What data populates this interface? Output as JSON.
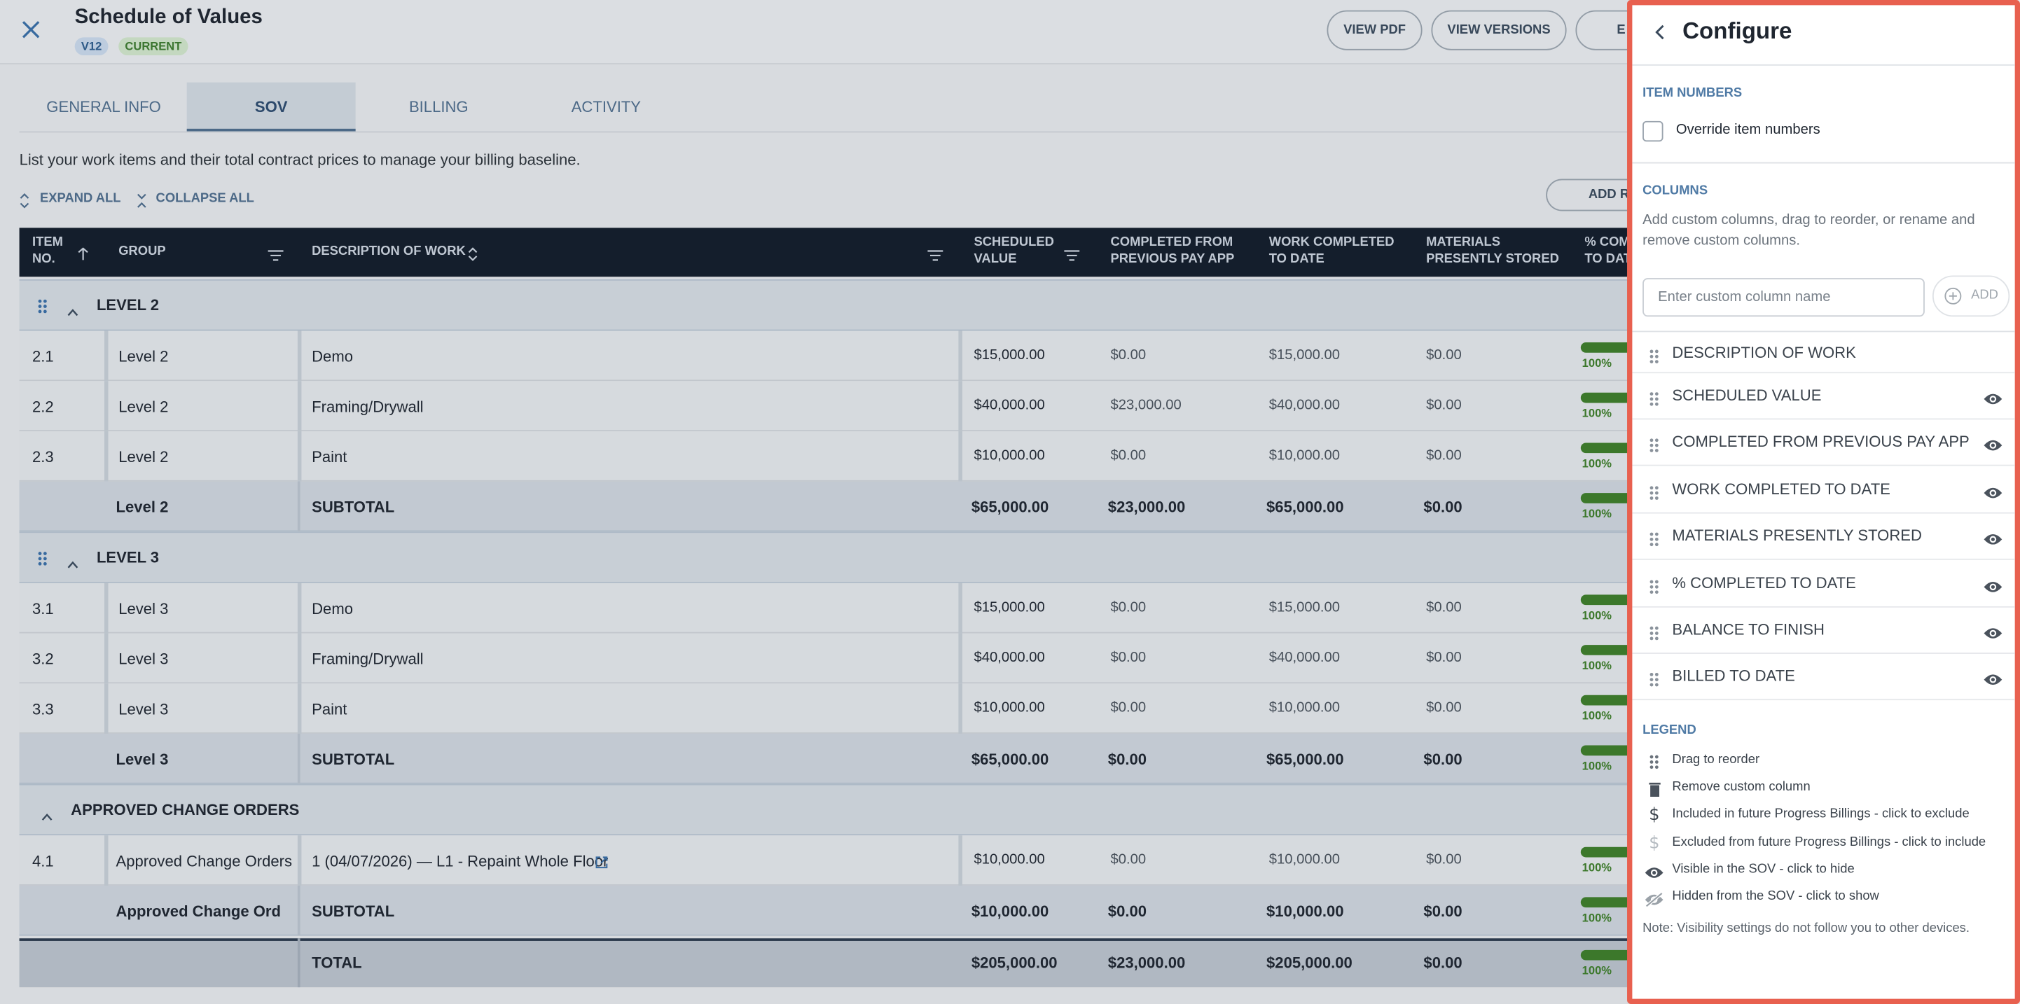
{
  "header": {
    "title": "Schedule of Values",
    "version": "V12",
    "status": "CURRENT",
    "buttons": [
      "VIEW PDF",
      "VIEW VERSIONS",
      "E"
    ]
  },
  "tabs": [
    "GENERAL INFO",
    "SOV",
    "BILLING",
    "ACTIVITY"
  ],
  "intro": "List your work items and their total contract prices to manage your billing baseline.",
  "toolbar": {
    "expand": "EXPAND ALL",
    "collapse": "COLLAPSE ALL",
    "add": "ADD R"
  },
  "table": {
    "columns": [
      [
        "ITEM",
        "NO."
      ],
      [
        "GROUP"
      ],
      [
        "DESCRIPTION OF WORK"
      ],
      [
        "SCHEDULED",
        "VALUE"
      ],
      [
        "COMPLETED FROM",
        "PREVIOUS PAY APP"
      ],
      [
        "WORK COMPLETED",
        "TO DATE"
      ],
      [
        "MATERIALS",
        "PRESENTLY STORED"
      ],
      [
        "% COM",
        "TO DAT"
      ]
    ],
    "groups": [
      {
        "title": "LEVEL 2",
        "rows": [
          [
            "2.1",
            "Level 2",
            "Demo",
            "$15,000.00",
            "$0.00",
            "$15,000.00",
            "$0.00",
            "100%"
          ],
          [
            "2.2",
            "Level 2",
            "Framing/Drywall",
            "$40,000.00",
            "$23,000.00",
            "$40,000.00",
            "$0.00",
            "100%"
          ],
          [
            "2.3",
            "Level 2",
            "Paint",
            "$10,000.00",
            "$0.00",
            "$10,000.00",
            "$0.00",
            "100%"
          ]
        ],
        "subtotal": [
          "Level 2",
          "SUBTOTAL",
          "$65,000.00",
          "$23,000.00",
          "$65,000.00",
          "$0.00",
          "100%"
        ]
      },
      {
        "title": "LEVEL 3",
        "rows": [
          [
            "3.1",
            "Level 3",
            "Demo",
            "$15,000.00",
            "$0.00",
            "$15,000.00",
            "$0.00",
            "100%"
          ],
          [
            "3.2",
            "Level 3",
            "Framing/Drywall",
            "$40,000.00",
            "$0.00",
            "$40,000.00",
            "$0.00",
            "100%"
          ],
          [
            "3.3",
            "Level 3",
            "Paint",
            "$10,000.00",
            "$0.00",
            "$10,000.00",
            "$0.00",
            "100%"
          ]
        ],
        "subtotal": [
          "Level 3",
          "SUBTOTAL",
          "$65,000.00",
          "$0.00",
          "$65,000.00",
          "$0.00",
          "100%"
        ]
      },
      {
        "title": "APPROVED CHANGE ORDERS",
        "rows": [
          [
            "4.1",
            "Approved Change Orders",
            "1 (04/07/2026) — L1 - Repaint Whole Floor",
            "$10,000.00",
            "$0.00",
            "$10,000.00",
            "$0.00",
            "100%"
          ]
        ],
        "subtotal": [
          "Approved Change Ord...",
          "SUBTOTAL",
          "$10,000.00",
          "$0.00",
          "$10,000.00",
          "$0.00",
          "100%"
        ]
      }
    ],
    "total": [
      "TOTAL",
      "$205,000.00",
      "$23,000.00",
      "$205,000.00",
      "$0.00",
      "100%"
    ]
  },
  "panel": {
    "title": "Configure",
    "item_numbers": "ITEM NUMBERS",
    "override": "Override item numbers",
    "columns_heading": "COLUMNS",
    "columns_help": [
      "Add custom columns, drag to reorder, or rename and",
      "remove custom columns."
    ],
    "input_placeholder": "Enter custom column name",
    "add": "ADD",
    "columns": [
      "DESCRIPTION OF WORK",
      "SCHEDULED VALUE",
      "COMPLETED FROM PREVIOUS PAY APP",
      "WORK COMPLETED TO DATE",
      "MATERIALS PRESENTLY STORED",
      "% COMPLETED TO DATE",
      "BALANCE TO FINISH",
      "BILLED TO DATE"
    ],
    "legend_heading": "LEGEND",
    "legend": [
      "Drag to reorder",
      "Remove custom column",
      "Included in future Progress Billings - click to exclude",
      "Excluded from future Progress Billings - click to include",
      "Visible in the SOV - click to hide",
      "Hidden from the SOV - click to show"
    ],
    "note": "Note: Visibility settings do not follow you to other devices."
  }
}
